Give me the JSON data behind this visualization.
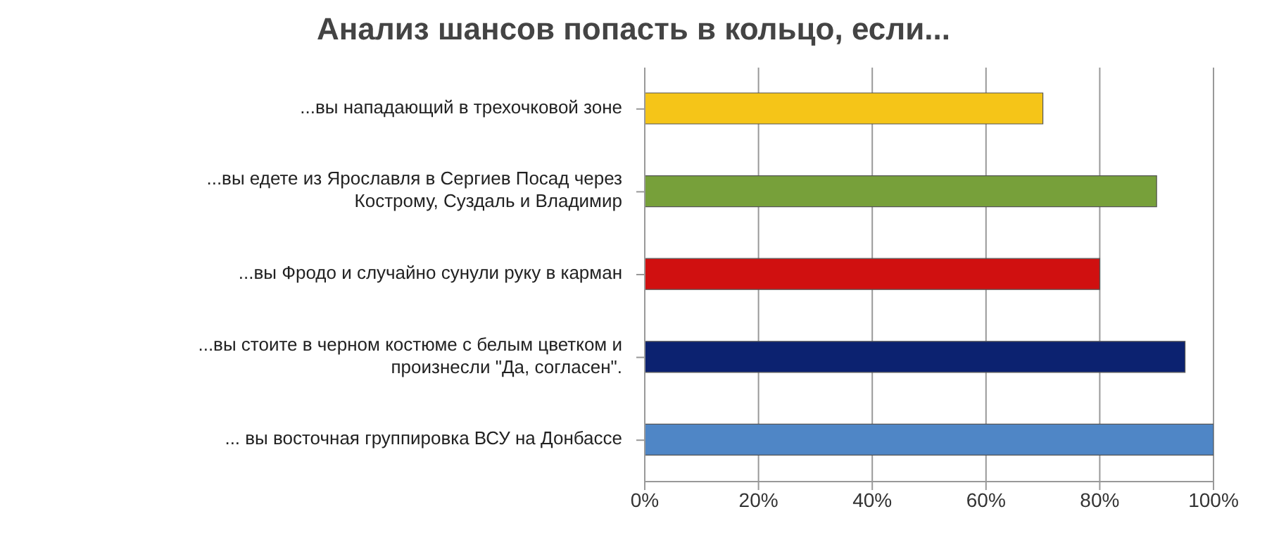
{
  "chart_data": {
    "type": "bar",
    "orientation": "horizontal",
    "title": "Анализ шансов попасть в кольцо, если...",
    "categories": [
      "...вы нападающий в трехочковой зоне",
      "...вы едете из Ярославля в Сергиев Посад через Кострому, Суздаль и Владимир",
      "...вы Фродо и случайно сунули руку в карман",
      "...вы стоите в черном костюме с белым цветком и произнесли \"Да, согласен\".",
      "... вы восточная группировка ВСУ на Донбассе"
    ],
    "values": [
      70,
      90,
      80,
      95,
      100
    ],
    "colors": [
      "#f5c518",
      "#77a03a",
      "#d01010",
      "#0c2270",
      "#4f86c6"
    ],
    "xlim": [
      0,
      100
    ],
    "xticks": [
      {
        "value": 0,
        "label": "0%"
      },
      {
        "value": 20,
        "label": "20%"
      },
      {
        "value": 40,
        "label": "40%"
      },
      {
        "value": 60,
        "label": "60%"
      },
      {
        "value": 80,
        "label": "80%"
      },
      {
        "value": 100,
        "label": "100%"
      }
    ],
    "grid": "x"
  }
}
